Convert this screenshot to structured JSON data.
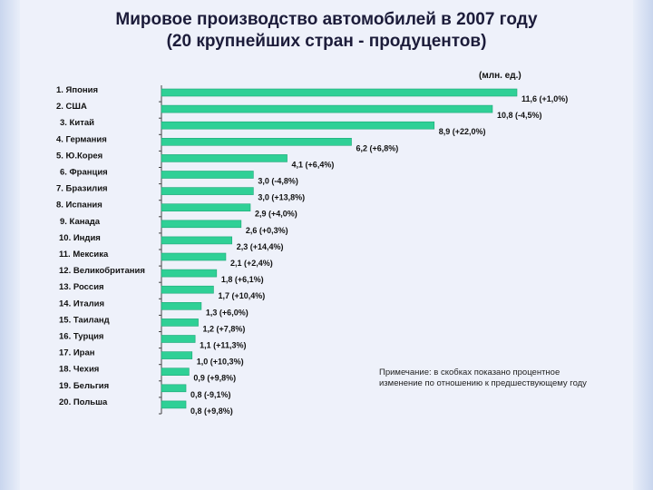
{
  "title_line1": "Мировое производство автомобилей в 2007 году",
  "title_line2": "(20 крупнейших стран - продуцентов)",
  "units": "(млн. ед.)",
  "note": "Примечание: в скобках показано процентное изменение по отношению к предшествующему году",
  "colors": {
    "bar": "#2fd096",
    "bar_stroke": "#1fa878",
    "axis": "#444444"
  },
  "chart_data": {
    "type": "bar",
    "orientation": "horizontal",
    "categories": [
      "1. Япония",
      "2. США",
      "3. Китай",
      "4. Германия",
      "5. Ю.Корея",
      "6. Франция",
      "7. Бразилия",
      "8. Испания",
      "9. Канада",
      "10. Индия",
      "11. Мексика",
      "12. Великобритания",
      "13. Россия",
      "14. Италия",
      "15. Таиланд",
      "16. Турция",
      "17. Иран",
      "18. Чехия",
      "19. Бельгия",
      "20. Польша"
    ],
    "values": [
      11.6,
      10.8,
      8.9,
      6.2,
      4.1,
      3.0,
      3.0,
      2.9,
      2.6,
      2.3,
      2.1,
      1.8,
      1.7,
      1.3,
      1.2,
      1.1,
      1.0,
      0.9,
      0.8,
      0.8
    ],
    "data_labels": [
      "11,6  (+1,0%)",
      "10,8  (-4,5%)",
      "8,9 (+22,0%)",
      "6,2 (+6,8%)",
      "4,1 (+6,4%)",
      "3,0 (-4,8%)",
      "3,0 (+13,8%)",
      "2,9 (+4,0%)",
      "2,6 (+0,3%)",
      "2,3 (+14,4%)",
      "2,1 (+2,4%)",
      "1,8 (+6,1%)",
      "1,7 (+10,4%)",
      "1,3 (+6,0%)",
      "1,2 (+7,8%)",
      "1,1 (+11,3%)",
      "1,0 (+10,3%)",
      "0,9 (+9,8%)",
      "0,8 (-9,1%)",
      "0,8  (+9,8%)"
    ],
    "pct_change": [
      1.0,
      -4.5,
      22.0,
      6.8,
      6.4,
      -4.8,
      13.8,
      4.0,
      0.3,
      14.4,
      2.4,
      6.1,
      10.4,
      6.0,
      7.8,
      11.3,
      10.3,
      9.8,
      -9.1,
      9.8
    ],
    "xlim": [
      0,
      11.6
    ],
    "grid": false,
    "legend": "none"
  }
}
